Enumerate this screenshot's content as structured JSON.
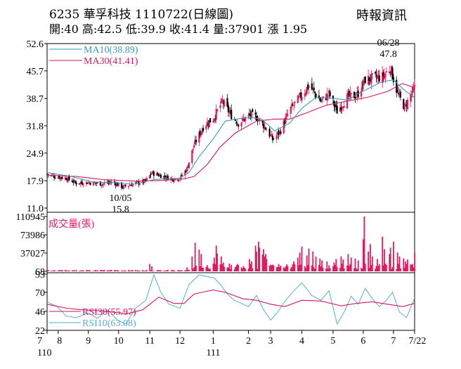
{
  "header": {
    "title": "6235  華孚科技 1110722(日線圖)",
    "source": "時報資訊",
    "ohlc": "開:40 高:42.5 低:39.9 收:41.4 量:37901 漲 1.95"
  },
  "colors": {
    "up": "#e8175d",
    "down": "#000000",
    "ma10": "#3a9bb8",
    "ma30": "#d2185a",
    "volume": "#e8175d",
    "rsi30": "#d2185a",
    "rsi10": "#5aaed0"
  },
  "chart_data": [
    {
      "type": "candlestick",
      "yticks": [
        "52.6",
        "45.7",
        "38.7",
        "31.8",
        "24.9",
        "17.9",
        "11.0"
      ],
      "ylim": [
        11.0,
        52.6
      ],
      "x_ticks": [
        {
          "label": "7",
          "date": "2021-07-22"
        },
        {
          "label": "8",
          "date": "2021-08-02"
        },
        {
          "label": "9",
          "date": "2021-09-01"
        },
        {
          "label": "10",
          "date": "2021-10-01"
        },
        {
          "label": "11",
          "date": "2021-11-01"
        },
        {
          "label": "12",
          "date": "2021-12-01"
        },
        {
          "label": "1",
          "date": "2022-01-03"
        },
        {
          "label": "2",
          "date": "2022-02-07"
        },
        {
          "label": "3",
          "date": "2022-03-01"
        },
        {
          "label": "4",
          "date": "2022-04-01"
        },
        {
          "label": "5",
          "date": "2022-05-02"
        },
        {
          "label": "6",
          "date": "2022-06-01"
        },
        {
          "label": "7",
          "date": "2022-07-01"
        },
        {
          "label": "7/22",
          "date": "2022-07-22"
        }
      ],
      "year_labels": [
        {
          "label": "110",
          "at_tick": 0
        },
        {
          "label": "111",
          "at_tick": 6
        }
      ],
      "annotations": [
        {
          "date_label": "10/05",
          "value_label": "15.8",
          "date": "2021-10-05",
          "value": 15.8,
          "kind": "low"
        },
        {
          "date_label": "06/28",
          "value_label": "47.8",
          "date": "2022-06-28",
          "value": 47.8,
          "kind": "high"
        }
      ],
      "legend": [
        {
          "name": "MA10(38.89)",
          "color": "#3a9bb8"
        },
        {
          "name": "MA30(41.41)",
          "color": "#d2185a"
        }
      ],
      "close_path": [
        [
          "2021-07-22",
          19.6
        ],
        [
          "2021-07-30",
          19.0
        ],
        [
          "2021-08-10",
          18.6
        ],
        [
          "2021-08-20",
          17.3
        ],
        [
          "2021-09-01",
          17.5
        ],
        [
          "2021-09-15",
          17.1
        ],
        [
          "2021-09-25",
          17.6
        ],
        [
          "2021-10-05",
          16.3
        ],
        [
          "2021-10-15",
          17.1
        ],
        [
          "2021-10-28",
          17.8
        ],
        [
          "2021-11-03",
          19.9
        ],
        [
          "2021-11-15",
          19.0
        ],
        [
          "2021-11-25",
          18.3
        ],
        [
          "2021-12-01",
          18.6
        ],
        [
          "2021-12-08",
          21.0
        ],
        [
          "2021-12-15",
          27.0
        ],
        [
          "2021-12-25",
          32.0
        ],
        [
          "2022-01-03",
          33.6
        ],
        [
          "2022-01-12",
          38.0
        ],
        [
          "2022-01-20",
          34.8
        ],
        [
          "2022-01-28",
          32.5
        ],
        [
          "2022-02-09",
          34.5
        ],
        [
          "2022-02-16",
          33.8
        ],
        [
          "2022-02-24",
          31.3
        ],
        [
          "2022-03-03",
          28.3
        ],
        [
          "2022-03-10",
          30.2
        ],
        [
          "2022-03-20",
          35.8
        ],
        [
          "2022-03-30",
          39.0
        ],
        [
          "2022-04-08",
          42.0
        ],
        [
          "2022-04-20",
          38.0
        ],
        [
          "2022-04-28",
          39.9
        ],
        [
          "2022-05-06",
          35.5
        ],
        [
          "2022-05-16",
          39.0
        ],
        [
          "2022-05-26",
          39.6
        ],
        [
          "2022-06-03",
          43.5
        ],
        [
          "2022-06-10",
          43.8
        ],
        [
          "2022-06-20",
          44.2
        ],
        [
          "2022-06-28",
          46.5
        ],
        [
          "2022-07-05",
          40.0
        ],
        [
          "2022-07-12",
          36.5
        ],
        [
          "2022-07-22",
          41.4
        ]
      ],
      "ma10": [
        [
          "2021-07-22",
          20.0
        ],
        [
          "2021-08-15",
          19.0
        ],
        [
          "2021-09-05",
          17.6
        ],
        [
          "2021-10-01",
          17.4
        ],
        [
          "2021-10-15",
          17.0
        ],
        [
          "2021-11-05",
          18.2
        ],
        [
          "2021-12-01",
          18.6
        ],
        [
          "2021-12-10",
          20.0
        ],
        [
          "2021-12-20",
          24.0
        ],
        [
          "2022-01-03",
          28.5
        ],
        [
          "2022-01-15",
          33.0
        ],
        [
          "2022-02-07",
          34.0
        ],
        [
          "2022-02-20",
          33.5
        ],
        [
          "2022-03-05",
          30.5
        ],
        [
          "2022-03-20",
          32.5
        ],
        [
          "2022-04-01",
          36.2
        ],
        [
          "2022-04-15",
          39.0
        ],
        [
          "2022-05-01",
          38.8
        ],
        [
          "2022-05-16",
          38.3
        ],
        [
          "2022-06-01",
          40.6
        ],
        [
          "2022-06-20",
          43.0
        ],
        [
          "2022-07-01",
          43.4
        ],
        [
          "2022-07-12",
          40.8
        ],
        [
          "2022-07-22",
          38.89
        ]
      ],
      "ma30": [
        [
          "2021-07-22",
          19.3
        ],
        [
          "2021-08-20",
          19.0
        ],
        [
          "2021-09-15",
          18.2
        ],
        [
          "2021-10-20",
          17.8
        ],
        [
          "2021-11-15",
          18.0
        ],
        [
          "2021-12-05",
          18.4
        ],
        [
          "2021-12-15",
          19.0
        ],
        [
          "2021-12-28",
          22.0
        ],
        [
          "2022-01-10",
          26.5
        ],
        [
          "2022-01-25",
          30.0
        ],
        [
          "2022-02-15",
          33.0
        ],
        [
          "2022-03-05",
          33.5
        ],
        [
          "2022-03-20",
          33.5
        ],
        [
          "2022-04-05",
          35.0
        ],
        [
          "2022-04-25",
          37.0
        ],
        [
          "2022-05-15",
          38.0
        ],
        [
          "2022-06-05",
          39.0
        ],
        [
          "2022-06-25",
          40.5
        ],
        [
          "2022-07-10",
          42.5
        ],
        [
          "2022-07-22",
          41.41
        ]
      ]
    },
    {
      "type": "bar",
      "title": "成交量(張)",
      "yticks": [
        "110945",
        "73986",
        "37027",
        "68"
      ],
      "ylim": [
        68,
        110945
      ],
      "spikes": [
        [
          "2021-11-01",
          15000
        ],
        [
          "2021-11-03",
          10000
        ],
        [
          "2021-12-08",
          8000
        ],
        [
          "2021-12-13",
          30000
        ],
        [
          "2021-12-16",
          58000
        ],
        [
          "2021-12-20",
          44000
        ],
        [
          "2021-12-22",
          35000
        ],
        [
          "2022-01-04",
          28000
        ],
        [
          "2022-01-06",
          52000
        ],
        [
          "2022-01-07",
          36000
        ],
        [
          "2022-01-11",
          30000
        ],
        [
          "2022-01-13",
          18000
        ],
        [
          "2022-02-08",
          25000
        ],
        [
          "2022-02-10",
          20000
        ],
        [
          "2022-02-14",
          52000
        ],
        [
          "2022-02-15",
          40000
        ],
        [
          "2022-02-17",
          60000
        ],
        [
          "2022-02-18",
          48000
        ],
        [
          "2022-02-21",
          34000
        ],
        [
          "2022-02-22",
          45000
        ],
        [
          "2022-02-23",
          30000
        ],
        [
          "2022-02-24",
          35000
        ],
        [
          "2022-02-25",
          25000
        ],
        [
          "2022-03-04",
          12000
        ],
        [
          "2022-03-16",
          10000
        ],
        [
          "2022-03-24",
          20000
        ],
        [
          "2022-03-28",
          28000
        ],
        [
          "2022-03-30",
          38000
        ],
        [
          "2022-04-01",
          50000
        ],
        [
          "2022-04-06",
          32000
        ],
        [
          "2022-04-08",
          46000
        ],
        [
          "2022-04-12",
          40000
        ],
        [
          "2022-04-15",
          30000
        ],
        [
          "2022-04-19",
          26000
        ],
        [
          "2022-04-21",
          22000
        ],
        [
          "2022-04-26",
          20000
        ],
        [
          "2022-05-03",
          18000
        ],
        [
          "2022-05-05",
          25000
        ],
        [
          "2022-05-10",
          30000
        ],
        [
          "2022-05-12",
          24000
        ],
        [
          "2022-05-17",
          35000
        ],
        [
          "2022-05-20",
          28000
        ],
        [
          "2022-05-24",
          26000
        ],
        [
          "2022-05-27",
          22000
        ],
        [
          "2022-06-01",
          65000
        ],
        [
          "2022-06-02",
          110945
        ],
        [
          "2022-06-06",
          40000
        ],
        [
          "2022-06-08",
          55000
        ],
        [
          "2022-06-10",
          30000
        ],
        [
          "2022-06-15",
          25000
        ],
        [
          "2022-06-20",
          70000
        ],
        [
          "2022-06-22",
          45000
        ],
        [
          "2022-06-27",
          35000
        ],
        [
          "2022-06-28",
          48000
        ],
        [
          "2022-07-01",
          60000
        ],
        [
          "2022-07-05",
          38000
        ],
        [
          "2022-07-07",
          30000
        ],
        [
          "2022-07-11",
          26000
        ],
        [
          "2022-07-13",
          20000
        ],
        [
          "2022-07-15",
          24000
        ],
        [
          "2022-07-20",
          15000
        ],
        [
          "2022-07-22",
          37901
        ]
      ]
    },
    {
      "type": "line",
      "yticks": [
        "93",
        "70",
        "46",
        "22"
      ],
      "ylim": [
        22,
        93
      ],
      "legend": [
        {
          "name": "RSI30(55.97)",
          "color": "#d2185a"
        },
        {
          "name": "RSI10(63.08)",
          "color": "#5aaed0"
        }
      ],
      "rsi30": [
        [
          "2021-07-22",
          55
        ],
        [
          "2021-08-10",
          50
        ],
        [
          "2021-08-25",
          48
        ],
        [
          "2021-09-10",
          47
        ],
        [
          "2021-09-25",
          45
        ],
        [
          "2021-10-10",
          43
        ],
        [
          "2021-10-25",
          48
        ],
        [
          "2021-11-10",
          64
        ],
        [
          "2021-11-25",
          56
        ],
        [
          "2021-12-05",
          56
        ],
        [
          "2021-12-15",
          68
        ],
        [
          "2022-01-03",
          73
        ],
        [
          "2022-01-15",
          70
        ],
        [
          "2022-02-01",
          62
        ],
        [
          "2022-02-15",
          60
        ],
        [
          "2022-03-01",
          55
        ],
        [
          "2022-03-15",
          52
        ],
        [
          "2022-04-01",
          60
        ],
        [
          "2022-04-20",
          59
        ],
        [
          "2022-05-10",
          53
        ],
        [
          "2022-05-25",
          56
        ],
        [
          "2022-06-10",
          58
        ],
        [
          "2022-06-25",
          55
        ],
        [
          "2022-07-10",
          52
        ],
        [
          "2022-07-22",
          55.97
        ]
      ],
      "rsi10": [
        [
          "2021-07-22",
          58
        ],
        [
          "2021-08-01",
          52
        ],
        [
          "2021-08-10",
          40
        ],
        [
          "2021-08-20",
          38
        ],
        [
          "2021-09-01",
          44
        ],
        [
          "2021-09-10",
          37
        ],
        [
          "2021-09-20",
          48
        ],
        [
          "2021-09-30",
          35
        ],
        [
          "2021-10-08",
          30
        ],
        [
          "2021-10-18",
          50
        ],
        [
          "2021-10-28",
          60
        ],
        [
          "2021-11-05",
          92
        ],
        [
          "2021-11-12",
          70
        ],
        [
          "2021-11-20",
          55
        ],
        [
          "2021-12-01",
          50
        ],
        [
          "2021-12-10",
          80
        ],
        [
          "2021-12-20",
          92
        ],
        [
          "2022-01-04",
          88
        ],
        [
          "2022-01-10",
          80
        ],
        [
          "2022-01-17",
          68
        ],
        [
          "2022-01-24",
          60
        ],
        [
          "2022-02-07",
          52
        ],
        [
          "2022-02-15",
          66
        ],
        [
          "2022-02-22",
          48
        ],
        [
          "2022-03-01",
          35
        ],
        [
          "2022-03-08",
          45
        ],
        [
          "2022-03-16",
          60
        ],
        [
          "2022-03-24",
          72
        ],
        [
          "2022-04-01",
          82
        ],
        [
          "2022-04-11",
          66
        ],
        [
          "2022-04-20",
          60
        ],
        [
          "2022-04-28",
          72
        ],
        [
          "2022-05-06",
          30
        ],
        [
          "2022-05-13",
          45
        ],
        [
          "2022-05-20",
          65
        ],
        [
          "2022-05-27",
          55
        ],
        [
          "2022-06-03",
          75
        ],
        [
          "2022-06-10",
          62
        ],
        [
          "2022-06-17",
          52
        ],
        [
          "2022-06-24",
          60
        ],
        [
          "2022-06-30",
          70
        ],
        [
          "2022-07-07",
          45
        ],
        [
          "2022-07-14",
          38
        ],
        [
          "2022-07-22",
          63.08
        ]
      ]
    }
  ]
}
